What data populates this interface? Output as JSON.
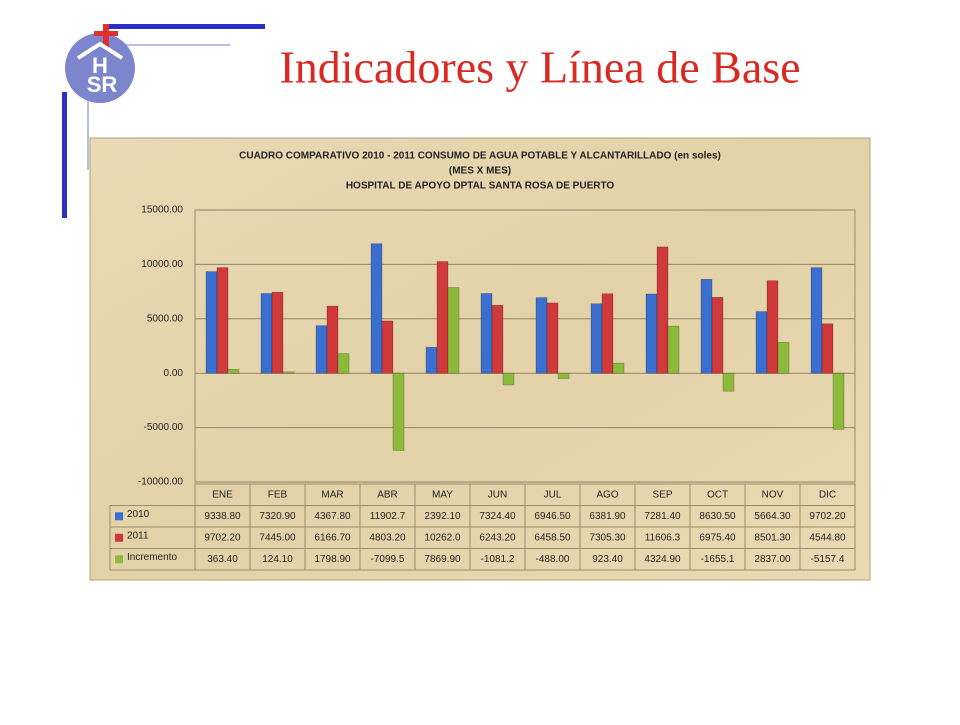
{
  "slide_title": "Indicadores y Línea de Base",
  "logo": {
    "top": "H",
    "bottom": "SR"
  },
  "chart_data": {
    "type": "bar",
    "title": [
      "CUADRO COMPARATIVO 2010 - 2011    CONSUMO  DE AGUA POTABLE Y ALCANTARILLADO (en soles)",
      "(MES X MES)",
      "HOSPITAL DE APOYO DPTAL SANTA ROSA DE PUERTO"
    ],
    "categories": [
      "ENE",
      "FEB",
      "MAR",
      "ABR",
      "MAY",
      "JUN",
      "JUL",
      "AGO",
      "SEP",
      "OCT",
      "NOV",
      "DIC"
    ],
    "series": [
      {
        "name": "2010",
        "color": "#3a6fcf",
        "values": [
          9338.8,
          7320.9,
          4367.8,
          11902.7,
          2392.1,
          7324.4,
          6946.5,
          6381.9,
          7281.4,
          8630.5,
          5664.3,
          9702.2
        ],
        "value_labels": [
          "9338.80",
          "7320.90",
          "4367.80",
          "11902.7",
          "2392.10",
          "7324.40",
          "6946.50",
          "6381.90",
          "7281.40",
          "8630.50",
          "5664.30",
          "9702.20"
        ]
      },
      {
        "name": "2011",
        "color": "#d0393a",
        "values": [
          9702.2,
          7445,
          6166.7,
          4803.2,
          10262,
          6243.2,
          6458.5,
          7305.3,
          11606.3,
          6975.4,
          8501.3,
          4544.8
        ],
        "value_labels": [
          "9702.20",
          "7445.00",
          "6166.70",
          "4803.20",
          "10262.0",
          "6243.20",
          "6458.50",
          "7305.30",
          "11606.3",
          "6975.40",
          "8501.30",
          "4544.80"
        ]
      },
      {
        "name": "Incremento",
        "color": "#8cbb3c",
        "values": [
          363.4,
          124.1,
          1798.9,
          -7099.5,
          7869.9,
          -1081.2,
          -488,
          923.4,
          4324.9,
          -1655.1,
          2837,
          -5157.4
        ],
        "value_labels": [
          "363.40",
          "124.10",
          "1798.90",
          "-7099.5",
          "7869.90",
          "-1081.2",
          "-488.00",
          "923.40",
          "4324.90",
          "-1655.1",
          "2837.00",
          "-5157.4"
        ]
      }
    ],
    "ylim": [
      -10000,
      15000
    ],
    "yticks": [
      {
        "value": -10000,
        "label": "-10000.00"
      },
      {
        "value": -5000,
        "label": "-5000.00"
      },
      {
        "value": 0,
        "label": "0.00"
      },
      {
        "value": 5000,
        "label": "5000.00"
      },
      {
        "value": 10000,
        "label": "10000.00"
      },
      {
        "value": 15000,
        "label": "15000.00"
      }
    ],
    "grid": true
  }
}
